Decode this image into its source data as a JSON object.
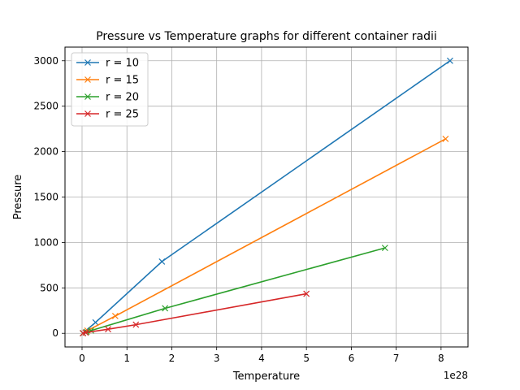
{
  "chart_data": {
    "type": "line",
    "title": "Pressure vs Temperature graphs for different container radii",
    "xlabel": "Temperature",
    "ylabel": "Pressure",
    "x_offset_label": "1e28",
    "x_scale": 1e+28,
    "xlim": [
      -3.8e+27,
      8.6e+28
    ],
    "ylim": [
      -150,
      3150
    ],
    "xticks": [
      0,
      1e+28,
      2e+28,
      3e+28,
      4e+28,
      5e+28,
      6e+28,
      7e+28,
      8e+28
    ],
    "xtick_labels": [
      "0",
      "1",
      "2",
      "3",
      "4",
      "5",
      "6",
      "7",
      "8"
    ],
    "yticks": [
      0,
      500,
      1000,
      1500,
      2000,
      2500,
      3000
    ],
    "ytick_labels": [
      "0",
      "500",
      "1000",
      "1500",
      "2000",
      "2500",
      "3000"
    ],
    "grid": true,
    "legend_position": "upper-left",
    "marker": "x",
    "series": [
      {
        "name": "r = 10",
        "color": "#1f77b4",
        "x": [
          2e+26,
          3e+27,
          1.78e+28,
          8.2e+28
        ],
        "y": [
          2,
          120,
          790,
          3000
        ]
      },
      {
        "name": "r = 15",
        "color": "#ff7f0e",
        "x": [
          2e+26,
          1.2e+27,
          7.4e+27,
          8.1e+28
        ],
        "y": [
          1,
          30,
          190,
          2140
        ]
      },
      {
        "name": "r = 20",
        "color": "#2ca02c",
        "x": [
          2e+26,
          1e+27,
          2e+27,
          1.85e+28,
          6.75e+28
        ],
        "y": [
          1,
          15,
          30,
          275,
          940
        ]
      },
      {
        "name": "r = 25",
        "color": "#d62728",
        "x": [
          2e+26,
          8e+26,
          5.8e+27,
          1.2e+28,
          5e+28
        ],
        "y": [
          1,
          8,
          45,
          95,
          435
        ]
      }
    ]
  }
}
